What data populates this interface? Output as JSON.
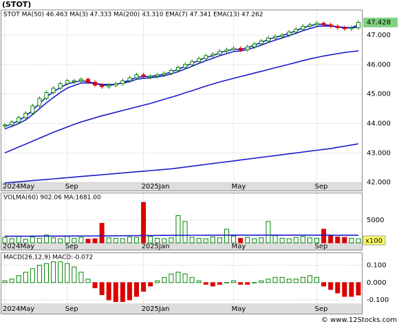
{
  "title": "(STOT)",
  "footer": "© www.12Stocks.com",
  "chart_data": [
    {
      "type": "candlestick",
      "name": "price",
      "legend": "STOT  MA(50)  46.463  MA(3)  47.333  MA(200)  43.310  EMA(7)  47.341  EMA(13)  47.262",
      "categories": [
        "2024May",
        null,
        null,
        null,
        null,
        null,
        null,
        null,
        null,
        "Sep",
        null,
        null,
        null,
        null,
        null,
        null,
        null,
        null,
        null,
        null,
        "2025Jan",
        null,
        null,
        null,
        null,
        null,
        null,
        null,
        null,
        null,
        null,
        null,
        null,
        "May",
        null,
        null,
        null,
        null,
        null,
        null,
        null,
        null,
        null,
        null,
        null,
        "Sep",
        null,
        null,
        null,
        null,
        null,
        null
      ],
      "close": [
        43.95,
        44.05,
        44.2,
        44.35,
        44.6,
        44.85,
        45.05,
        45.2,
        45.35,
        45.45,
        45.45,
        45.5,
        45.4,
        45.3,
        45.25,
        45.3,
        45.35,
        45.45,
        45.55,
        45.65,
        45.6,
        45.6,
        45.65,
        45.7,
        45.8,
        45.9,
        46.0,
        46.1,
        46.2,
        46.3,
        46.35,
        46.45,
        46.5,
        46.55,
        46.5,
        46.6,
        46.7,
        46.8,
        46.9,
        46.95,
        47.0,
        47.1,
        47.2,
        47.3,
        47.35,
        47.4,
        47.35,
        47.3,
        47.25,
        47.22,
        47.25,
        47.43
      ],
      "up_color": "#008000",
      "down_color": "#dd0000",
      "series": [
        {
          "name": "EMA(7)",
          "color": "#1a1acc",
          "values": [
            43.9,
            43.98,
            44.1,
            44.25,
            44.45,
            44.68,
            44.9,
            45.07,
            45.22,
            45.34,
            45.4,
            45.45,
            45.42,
            45.36,
            45.3,
            45.3,
            45.32,
            45.39,
            45.47,
            45.57,
            45.59,
            45.6,
            45.63,
            45.67,
            45.75,
            45.84,
            45.94,
            46.04,
            46.14,
            46.24,
            46.3,
            46.4,
            46.46,
            46.52,
            46.51,
            46.57,
            46.66,
            46.75,
            46.85,
            46.92,
            46.98,
            47.06,
            47.15,
            47.25,
            47.31,
            47.37,
            47.36,
            47.32,
            47.28,
            47.24,
            47.25,
            47.34
          ]
        },
        {
          "name": "EMA(13)",
          "color": "#1a1acc",
          "values": [
            43.82,
            43.9,
            44.0,
            44.12,
            44.3,
            44.5,
            44.7,
            44.88,
            45.05,
            45.2,
            45.29,
            45.37,
            45.38,
            45.36,
            45.33,
            45.32,
            45.33,
            45.37,
            45.42,
            45.5,
            45.53,
            45.55,
            45.58,
            45.62,
            45.68,
            45.76,
            45.85,
            45.94,
            46.04,
            46.13,
            46.21,
            46.3,
            46.37,
            46.44,
            46.46,
            46.51,
            46.58,
            46.66,
            46.75,
            46.83,
            46.9,
            46.98,
            47.06,
            47.15,
            47.22,
            47.29,
            47.31,
            47.3,
            47.28,
            47.26,
            47.25,
            47.26
          ]
        },
        {
          "name": "MA(50)",
          "color": "#1a1acc",
          "values": [
            43.0,
            43.1,
            43.2,
            43.3,
            43.4,
            43.5,
            43.6,
            43.7,
            43.79,
            43.88,
            43.97,
            44.05,
            44.12,
            44.19,
            44.26,
            44.32,
            44.38,
            44.44,
            44.5,
            44.56,
            44.62,
            44.68,
            44.75,
            44.82,
            44.89,
            44.96,
            45.04,
            45.11,
            45.19,
            45.27,
            45.34,
            45.41,
            45.47,
            45.53,
            45.59,
            45.65,
            45.71,
            45.77,
            45.83,
            45.89,
            45.95,
            46.01,
            46.07,
            46.13,
            46.19,
            46.24,
            46.29,
            46.33,
            46.37,
            46.41,
            46.44,
            46.46
          ]
        },
        {
          "name": "MA(200)",
          "color": "#1a1acc",
          "values": [
            41.98,
            42.0,
            42.02,
            42.04,
            42.06,
            42.08,
            42.1,
            42.12,
            42.14,
            42.16,
            42.18,
            42.2,
            42.22,
            42.24,
            42.26,
            42.28,
            42.3,
            42.32,
            42.34,
            42.36,
            42.38,
            42.4,
            42.42,
            42.44,
            42.46,
            42.49,
            42.52,
            42.55,
            42.58,
            42.61,
            42.64,
            42.67,
            42.7,
            42.73,
            42.76,
            42.79,
            42.82,
            42.85,
            42.88,
            42.91,
            42.94,
            42.97,
            43.0,
            43.03,
            43.06,
            43.09,
            43.12,
            43.15,
            43.19,
            43.23,
            43.27,
            43.31
          ]
        }
      ],
      "last_price": {
        "value": 47.428,
        "label": "47.428"
      },
      "ylim": [
        41.7,
        47.84
      ],
      "yticks": [
        {
          "value": 47,
          "label": "47.000"
        },
        {
          "value": 46,
          "label": "46.000"
        },
        {
          "value": 45,
          "label": "45.000"
        },
        {
          "value": 44,
          "label": "44.000"
        },
        {
          "value": 43,
          "label": "43.000"
        },
        {
          "value": 42,
          "label": "42.000"
        }
      ],
      "grid": true
    },
    {
      "type": "bar",
      "name": "volume",
      "legend": "VOLMA(60)  902.06  MA:1681.00",
      "values": [
        1200,
        900,
        1500,
        800,
        1300,
        1000,
        1700,
        1100,
        900,
        1400,
        1000,
        1200,
        800,
        900,
        4300,
        1100,
        1000,
        900,
        1300,
        1200,
        8900,
        1400,
        1000,
        900,
        1100,
        6000,
        4700,
        1200,
        1000,
        900,
        1300,
        1100,
        3000,
        1500,
        1000,
        1200,
        900,
        1100,
        4700,
        1600,
        1000,
        900,
        1200,
        1400,
        1100,
        1000,
        3000,
        1500,
        1300,
        1200,
        1000,
        902
      ],
      "ma": {
        "color": "#1a1acc",
        "values": [
          1450,
          1450,
          1460,
          1460,
          1470,
          1470,
          1480,
          1480,
          1490,
          1490,
          1500,
          1500,
          1510,
          1520,
          1530,
          1540,
          1550,
          1560,
          1570,
          1580,
          1600,
          1610,
          1620,
          1630,
          1640,
          1650,
          1660,
          1670,
          1670,
          1680,
          1680,
          1690,
          1690,
          1700,
          1700,
          1700,
          1700,
          1700,
          1700,
          1700,
          1700,
          1690,
          1690,
          1690,
          1690,
          1690,
          1690,
          1690,
          1685,
          1685,
          1683,
          1681
        ]
      },
      "unit_label": "x100",
      "ylim": [
        0,
        10900
      ],
      "yticks": [
        5000
      ],
      "grid": true
    },
    {
      "type": "histogram-bar",
      "name": "macd",
      "legend": "MACD(26,12,9)  MACD:-0.072",
      "values": [
        0.01,
        0.02,
        0.04,
        0.06,
        0.08,
        0.1,
        0.11,
        0.12,
        0.12,
        0.11,
        0.09,
        0.06,
        0.02,
        -0.03,
        -0.07,
        -0.1,
        -0.11,
        -0.11,
        -0.1,
        -0.08,
        -0.05,
        -0.02,
        0.01,
        0.03,
        0.05,
        0.06,
        0.05,
        0.03,
        0.01,
        -0.01,
        -0.02,
        -0.01,
        0.0,
        0.01,
        -0.01,
        -0.01,
        0.0,
        0.01,
        0.02,
        0.03,
        0.03,
        0.02,
        0.02,
        0.03,
        0.04,
        0.03,
        -0.02,
        -0.04,
        -0.06,
        -0.08,
        -0.08,
        -0.072
      ],
      "ylim": [
        -0.12,
        0.17
      ],
      "yticks": [
        {
          "value": 0.1,
          "label": "0.100"
        },
        {
          "value": 0,
          "label": "0.000"
        },
        {
          "value": -0.1,
          "label": "-0.100"
        }
      ],
      "grid": true
    }
  ]
}
